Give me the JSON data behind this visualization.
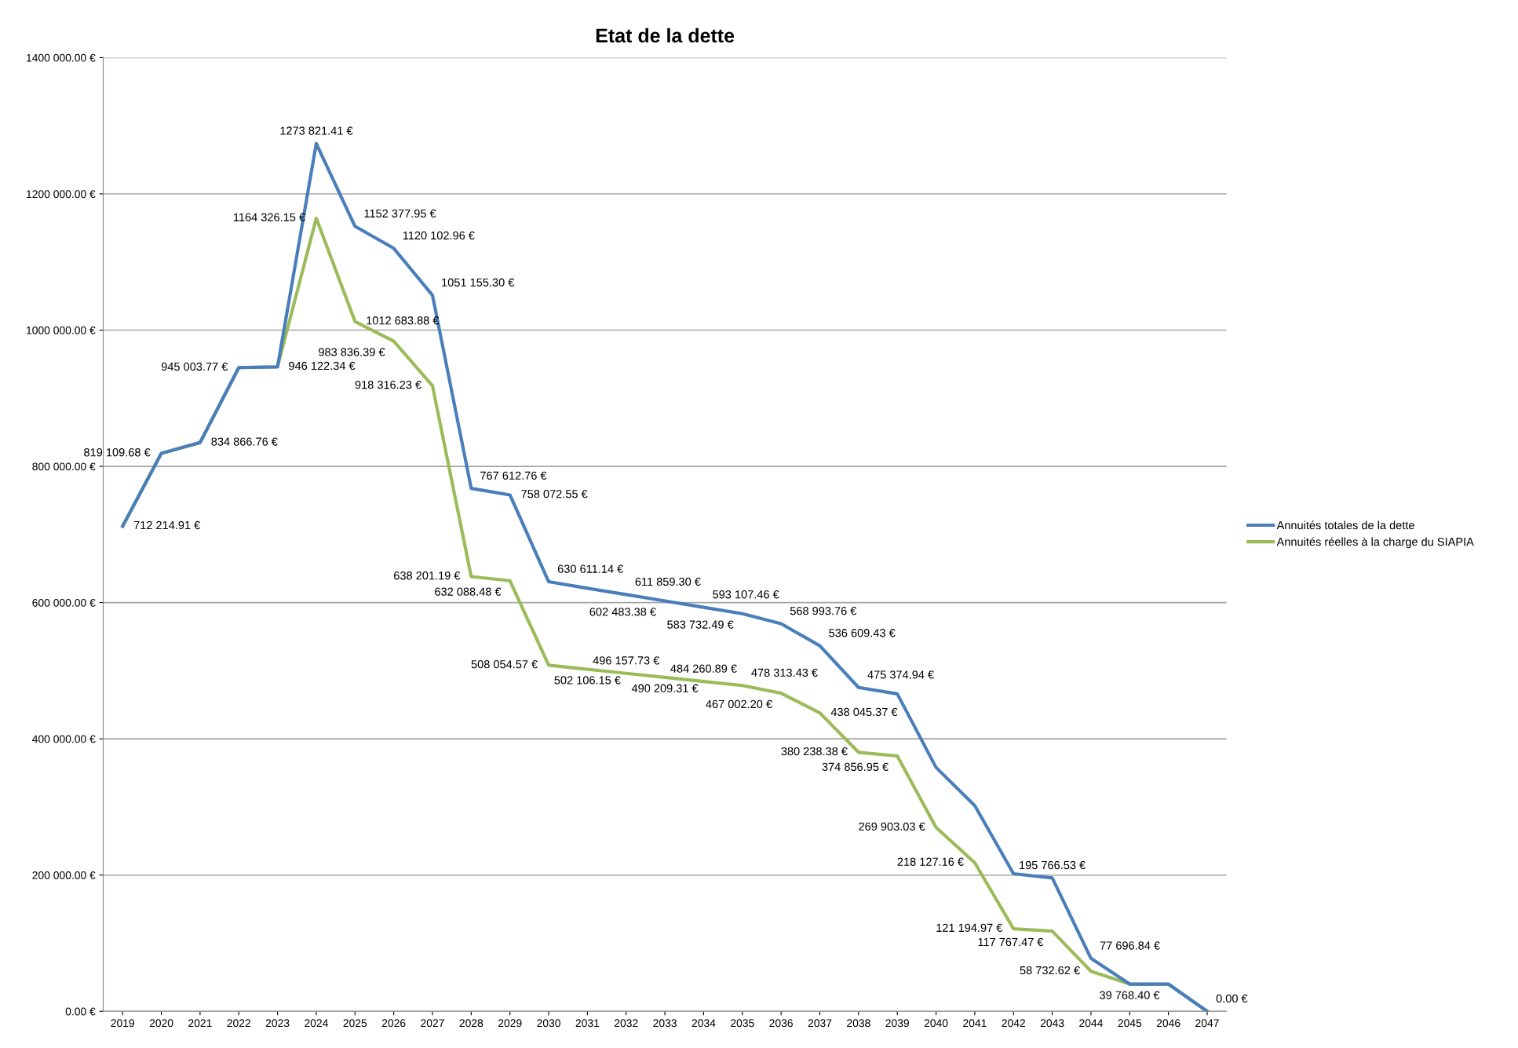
{
  "chart_data": {
    "type": "line",
    "title": "Etat de la dette",
    "categories": [
      "2019",
      "2020",
      "2021",
      "2022",
      "2023",
      "2024",
      "2025",
      "2026",
      "2027",
      "2028",
      "2029",
      "2030",
      "2031",
      "2032",
      "2033",
      "2034",
      "2035",
      "2036",
      "2037",
      "2038",
      "2039",
      "2040",
      "2041",
      "2042",
      "2043",
      "2044",
      "2045",
      "2046",
      "2047"
    ],
    "series": [
      {
        "name": "Annuités totales de la dette",
        "color": "#4a7ebb",
        "values": [
          712000,
          819000,
          835000,
          945000,
          946000,
          1273821.41,
          1152377.95,
          1120102.96,
          1051155.3,
          767612.76,
          758072.55,
          630611.14,
          621000,
          611859.3,
          602483.38,
          593107.46,
          583732.49,
          568993.76,
          536609.43,
          475374.94,
          466000,
          358000,
          302000,
          202000,
          195766.53,
          77696.84,
          40000,
          40000,
          0
        ],
        "value_labels": [
          null,
          null,
          null,
          null,
          null,
          "1273 821.41 €",
          "1152 377.95 €",
          "1120 102.96 €",
          "1051 155.30 €",
          "767 612.76 €",
          "758 072.55 €",
          "630 611.14 €",
          null,
          "611 859.30 €",
          "602 483.38 €",
          "593 107.46 €",
          "583 732.49 €",
          "568 993.76 €",
          "536 609.43 €",
          "475 374.94 €",
          null,
          null,
          null,
          null,
          "195 766.53 €",
          "77 696.84 €",
          null,
          null,
          null
        ]
      },
      {
        "name": "Annuités réelles à la charge du SIAPIA",
        "color": "#9bbb59",
        "values": [
          712214.91,
          819109.68,
          834866.76,
          945003.77,
          946122.34,
          1164326.15,
          1012683.88,
          983836.39,
          918316.23,
          638201.19,
          632088.48,
          508054.57,
          502106.15,
          496157.73,
          490209.31,
          484260.89,
          478313.43,
          467002.2,
          438045.37,
          380238.38,
          374856.95,
          269903.03,
          218127.16,
          121194.97,
          117767.47,
          58732.62,
          40000,
          39768.4,
          0.0
        ],
        "value_labels": [
          "712 214.91 €",
          "819 109.68 €",
          "834 866.76 €",
          "945 003.77 €",
          "946 122.34 €",
          "1164 326.15 €",
          "1012 683.88 €",
          "983 836.39 €",
          "918 316.23 €",
          "638 201.19 €",
          "632 088.48 €",
          "508 054.57 €",
          "502 106.15 €",
          "496 157.73 €",
          "490 209.31 €",
          "484 260.89 €",
          "478 313.43 €",
          "467 002.20 €",
          "438 045.37 €",
          "380 238.38 €",
          "374 856.95 €",
          "269 903.03 €",
          "218 127.16 €",
          "121 194.97 €",
          "117 767.47 €",
          "58 732.62 €",
          null,
          "39 768.40 €",
          "0.00 €"
        ]
      }
    ],
    "ylim": [
      0,
      1400000
    ],
    "yticks": [
      {
        "value": 0,
        "label": "0.00 €"
      },
      {
        "value": 200000,
        "label": "200 000.00 €"
      },
      {
        "value": 400000,
        "label": "400 000.00 €"
      },
      {
        "value": 600000,
        "label": "600 000.00 €"
      },
      {
        "value": 800000,
        "label": "800 000.00 €"
      },
      {
        "value": 1000000,
        "label": "1000 000.00 €"
      },
      {
        "value": 1200000,
        "label": "1200 000.00 €"
      },
      {
        "value": 1400000,
        "label": "1400 000.00 €"
      }
    ],
    "grid": "y",
    "legend": "right",
    "marker": "none",
    "line_style": "solid"
  }
}
